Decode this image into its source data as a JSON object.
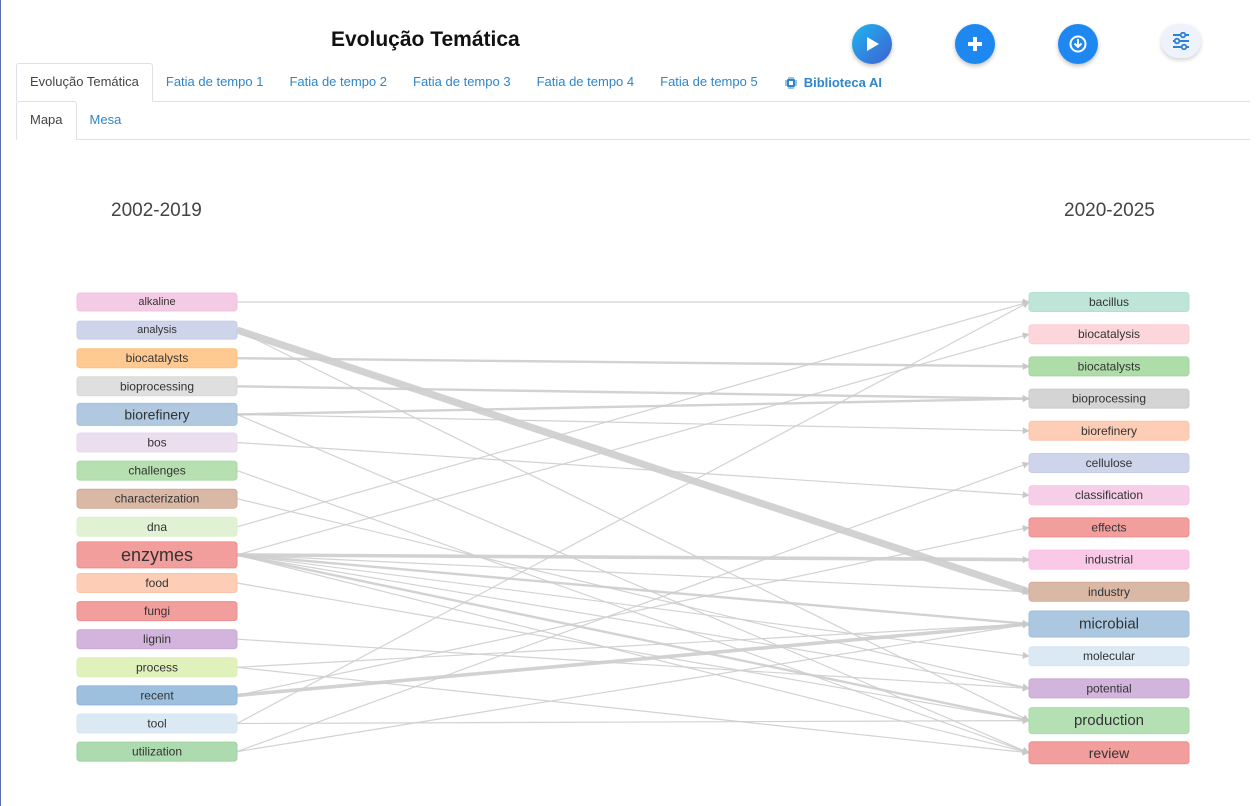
{
  "header": {
    "title": "Evolução Temática"
  },
  "toolbar": {
    "play_icon": "play-icon",
    "add_icon": "plus-icon",
    "download_icon": "download-icon",
    "settings_icon": "sliders-icon"
  },
  "tabs": [
    {
      "label": "Evolução Temática",
      "active": true
    },
    {
      "label": "Fatia de tempo 1"
    },
    {
      "label": "Fatia de tempo 2"
    },
    {
      "label": "Fatia de tempo 3"
    },
    {
      "label": "Fatia de tempo 4"
    },
    {
      "label": "Fatia de tempo 5"
    },
    {
      "label": "Biblioteca AI",
      "icon": "chip-icon"
    }
  ],
  "subtabs": [
    {
      "label": "Mapa",
      "active": true
    },
    {
      "label": "Mesa"
    }
  ],
  "diagram": {
    "left_period": "2002-2019",
    "right_period": "2020-2025",
    "left_nodes": [
      {
        "label": "alkaline",
        "color": "#f2c2e0",
        "size": "small"
      },
      {
        "label": "analysis",
        "color": "#c6cee6",
        "size": "small"
      },
      {
        "label": "biocatalysts",
        "color": "#ffbf7f",
        "size": "normal"
      },
      {
        "label": "bioprocessing",
        "color": "#d9d9d9",
        "size": "normal"
      },
      {
        "label": "biorefinery",
        "color": "#a2c0da",
        "size": "medium"
      },
      {
        "label": "bos",
        "color": "#e6d8ec",
        "size": "normal"
      },
      {
        "label": "challenges",
        "color": "#a9dba2",
        "size": "normal"
      },
      {
        "label": "characterization",
        "color": "#d4ab97",
        "size": "normal"
      },
      {
        "label": "dna",
        "color": "#dcf0cc",
        "size": "normal"
      },
      {
        "label": "enzymes",
        "color": "#f08d8c",
        "size": "large"
      },
      {
        "label": "food",
        "color": "#fdc4a9",
        "size": "normal"
      },
      {
        "label": "fungi",
        "color": "#f08d8c",
        "size": "normal"
      },
      {
        "label": "lignin",
        "color": "#cba7d6",
        "size": "normal"
      },
      {
        "label": "process",
        "color": "#dcefb0",
        "size": "normal"
      },
      {
        "label": "recent",
        "color": "#8db5d9",
        "size": "normal"
      },
      {
        "label": "tool",
        "color": "#d5e5f2",
        "size": "normal"
      },
      {
        "label": "utilization",
        "color": "#9fd3a0",
        "size": "normal"
      }
    ],
    "right_nodes": [
      {
        "label": "bacillus",
        "color": "#b3e0d1",
        "size": "normal"
      },
      {
        "label": "biocatalysis",
        "color": "#fccfd3",
        "size": "normal"
      },
      {
        "label": "biocatalysts",
        "color": "#a0d79a",
        "size": "normal"
      },
      {
        "label": "bioprocessing",
        "color": "#cccccc",
        "size": "normal"
      },
      {
        "label": "biorefinery",
        "color": "#fdc4a9",
        "size": "normal"
      },
      {
        "label": "cellulose",
        "color": "#c6cee6",
        "size": "normal"
      },
      {
        "label": "classification",
        "color": "#f5c6e3",
        "size": "normal"
      },
      {
        "label": "effects",
        "color": "#f08d8c",
        "size": "normal"
      },
      {
        "label": "industrial",
        "color": "#f8bfe3",
        "size": "normal"
      },
      {
        "label": "industry",
        "color": "#d4ab97",
        "size": "normal"
      },
      {
        "label": "microbial",
        "color": "#9ebedb",
        "size": "large"
      },
      {
        "label": "molecular",
        "color": "#d5e5f2",
        "size": "normal"
      },
      {
        "label": "potential",
        "color": "#cba7d6",
        "size": "normal"
      },
      {
        "label": "production",
        "color": "#a8dba6",
        "size": "large"
      },
      {
        "label": "review",
        "color": "#f08d8c",
        "size": "medium"
      }
    ],
    "links": [
      {
        "from": "alkaline",
        "to": "bacillus",
        "weight": 1
      },
      {
        "from": "analysis",
        "to": "industry",
        "weight": 6
      },
      {
        "from": "analysis",
        "to": "production",
        "weight": 1
      },
      {
        "from": "biocatalysts",
        "to": "biocatalysts",
        "weight": 2
      },
      {
        "from": "bioprocessing",
        "to": "bioprocessing",
        "weight": 2
      },
      {
        "from": "biorefinery",
        "to": "bioprocessing",
        "weight": 2
      },
      {
        "from": "biorefinery",
        "to": "biorefinery",
        "weight": 1
      },
      {
        "from": "biorefinery",
        "to": "review",
        "weight": 1
      },
      {
        "from": "bos",
        "to": "classification",
        "weight": 1
      },
      {
        "from": "challenges",
        "to": "review",
        "weight": 1
      },
      {
        "from": "characterization",
        "to": "potential",
        "weight": 1
      },
      {
        "from": "dna",
        "to": "bacillus",
        "weight": 1
      },
      {
        "from": "enzymes",
        "to": "industrial",
        "weight": 3
      },
      {
        "from": "enzymes",
        "to": "industry",
        "weight": 1
      },
      {
        "from": "enzymes",
        "to": "microbial",
        "weight": 2
      },
      {
        "from": "enzymes",
        "to": "production",
        "weight": 2
      },
      {
        "from": "enzymes",
        "to": "review",
        "weight": 1
      },
      {
        "from": "enzymes",
        "to": "potential",
        "weight": 1
      },
      {
        "from": "enzymes",
        "to": "molecular",
        "weight": 1
      },
      {
        "from": "enzymes",
        "to": "biocatalysis",
        "weight": 1
      },
      {
        "from": "food",
        "to": "production",
        "weight": 1
      },
      {
        "from": "lignin",
        "to": "potential",
        "weight": 1
      },
      {
        "from": "process",
        "to": "microbial",
        "weight": 1
      },
      {
        "from": "process",
        "to": "review",
        "weight": 1
      },
      {
        "from": "recent",
        "to": "microbial",
        "weight": 3
      },
      {
        "from": "recent",
        "to": "effects",
        "weight": 1
      },
      {
        "from": "tool",
        "to": "production",
        "weight": 1
      },
      {
        "from": "tool",
        "to": "bacillus",
        "weight": 1
      },
      {
        "from": "utilization",
        "to": "cellulose",
        "weight": 1
      },
      {
        "from": "utilization",
        "to": "microbial",
        "weight": 1
      }
    ]
  }
}
